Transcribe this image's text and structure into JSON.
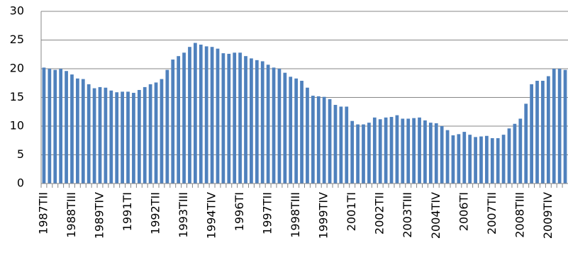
{
  "chart_data": {
    "type": "bar",
    "color": "#4f81bd",
    "grid": true,
    "ylim": [
      0,
      30
    ],
    "yticks": [
      0,
      5,
      10,
      15,
      20,
      25,
      30
    ],
    "categories": [
      "1987TII",
      null,
      null,
      null,
      null,
      "1988TIII",
      null,
      null,
      null,
      null,
      "1989TIV",
      null,
      null,
      null,
      null,
      "1991TI",
      null,
      null,
      null,
      null,
      "1992TII",
      null,
      null,
      null,
      null,
      "1993TIII",
      null,
      null,
      null,
      null,
      "1994TIV",
      null,
      null,
      null,
      null,
      "1996TI",
      null,
      null,
      null,
      null,
      "1997TII",
      null,
      null,
      null,
      null,
      "1998TIII",
      null,
      null,
      null,
      null,
      "1999TIV",
      null,
      null,
      null,
      null,
      "2001TI",
      null,
      null,
      null,
      null,
      "2002TII",
      null,
      null,
      null,
      null,
      "2003TIII",
      null,
      null,
      null,
      null,
      "2004TIV",
      null,
      null,
      null,
      null,
      "2006TI",
      null,
      null,
      null,
      null,
      "2007TII",
      null,
      null,
      null,
      null,
      "2008TIII",
      null,
      null,
      null,
      null,
      "2009TIV",
      null,
      null,
      null
    ],
    "values": [
      20.2,
      20.0,
      19.8,
      20.0,
      19.6,
      19.0,
      18.3,
      18.2,
      17.3,
      16.6,
      16.8,
      16.7,
      16.2,
      15.9,
      16.0,
      16.0,
      15.8,
      16.3,
      16.8,
      17.3,
      17.6,
      18.2,
      19.8,
      21.6,
      22.2,
      22.8,
      23.8,
      24.5,
      24.2,
      23.9,
      23.8,
      23.5,
      22.7,
      22.6,
      22.8,
      22.8,
      22.2,
      21.8,
      21.5,
      21.3,
      20.7,
      20.2,
      20.0,
      19.3,
      18.6,
      18.3,
      17.9,
      16.7,
      15.3,
      15.2,
      15.1,
      14.7,
      13.7,
      13.4,
      13.4,
      10.9,
      10.3,
      10.3,
      10.6,
      11.5,
      11.2,
      11.5,
      11.6,
      11.9,
      11.3,
      11.3,
      11.4,
      11.5,
      11.0,
      10.6,
      10.5,
      10.0,
      9.3,
      8.4,
      8.6,
      9.0,
      8.5,
      8.1,
      8.2,
      8.3,
      7.9,
      7.9,
      8.5,
      9.6,
      10.4,
      11.3,
      13.9,
      17.3,
      17.9,
      17.9,
      18.7,
      20.0,
      20.0,
      19.8
    ]
  }
}
